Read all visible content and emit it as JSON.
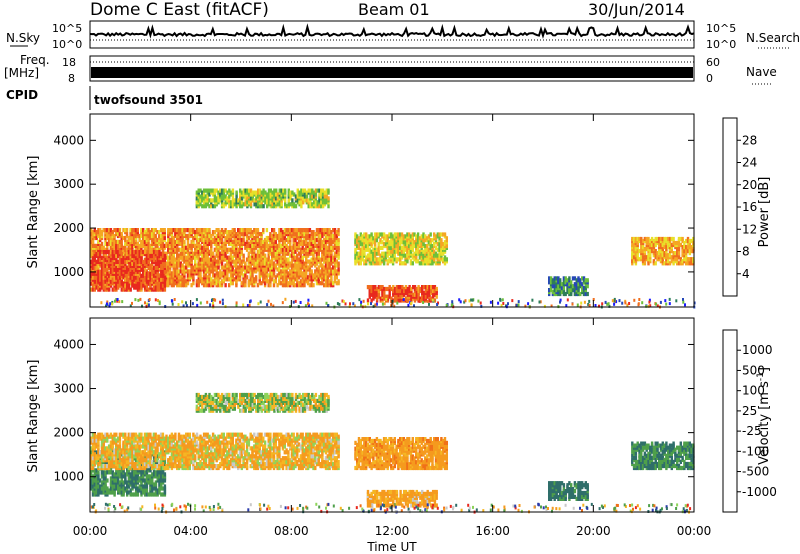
{
  "header": {
    "station": "Dome C East (fitACF)",
    "beam": "Beam 01",
    "date": "30/Jun/2014"
  },
  "strips": {
    "nsky_label": "N.Sky",
    "nsearch_label": "N.Search",
    "nsky_ticks": [
      "10^5",
      "10^0"
    ],
    "freq_label_1": "Freq.",
    "freq_label_2": "[MHz]",
    "freq_ticks": [
      "18",
      "8"
    ],
    "nave_label": "Nave",
    "nave_ticks": [
      "60",
      "0"
    ],
    "cpid_label": "CPID",
    "cpid_value": "twofsound 3501"
  },
  "colors": {
    "power": [
      "#1a1aff",
      "#2547b8",
      "#2e7d5a",
      "#6dbf3a",
      "#e8e02a",
      "#f5a623",
      "#f06e1e",
      "#e8281e"
    ],
    "velocity": [
      "#2a3aaa",
      "#2f6e6a",
      "#4fa04a",
      "#8ed45a",
      "#c8c8c8",
      "#f5b623",
      "#f59a1e",
      "#f07018",
      "#e8281e"
    ]
  },
  "chart_data": [
    {
      "type": "heatmap",
      "panel": "power",
      "xlabel": "",
      "ylabel": "Slant Range [km]",
      "x_ticks": [
        "00:00",
        "04:00",
        "08:00",
        "12:00",
        "16:00",
        "20:00",
        "00:00"
      ],
      "y_ticks": [
        1000,
        2000,
        3000,
        4000
      ],
      "ylim": [
        200,
        4600
      ],
      "colorbar_label": "Power [dB]",
      "colorbar_ticks": [
        "4",
        "8",
        "12",
        "16",
        "20",
        "24",
        "28"
      ],
      "regions": [
        {
          "t0": 0.0,
          "t1": 9.9,
          "r0": 700,
          "r1": 2000,
          "value": 24
        },
        {
          "t0": 0.0,
          "t1": 3.0,
          "r0": 600,
          "r1": 1500,
          "value": 28
        },
        {
          "t0": 4.2,
          "t1": 9.5,
          "r0": 2500,
          "r1": 2900,
          "value": 16
        },
        {
          "t0": 10.5,
          "t1": 14.2,
          "r0": 1200,
          "r1": 1900,
          "value": 18
        },
        {
          "t0": 11.0,
          "t1": 13.8,
          "r0": 350,
          "r1": 700,
          "value": 28
        },
        {
          "t0": 18.2,
          "t1": 19.8,
          "r0": 500,
          "r1": 900,
          "value": 10
        },
        {
          "t0": 21.5,
          "t1": 24.0,
          "r0": 1200,
          "r1": 1800,
          "value": 22
        }
      ]
    },
    {
      "type": "heatmap",
      "panel": "velocity",
      "xlabel": "Time UT",
      "ylabel": "Slant Range [km]",
      "x_ticks": [
        "00:00",
        "04:00",
        "08:00",
        "12:00",
        "16:00",
        "20:00",
        "00:00"
      ],
      "y_ticks": [
        1000,
        2000,
        3000,
        4000
      ],
      "ylim": [
        200,
        4600
      ],
      "colorbar_label": "Velocity [m s^-1]",
      "colorbar_ticks": [
        "1000",
        "500",
        "100",
        "25",
        "-25",
        "-100",
        "-500",
        "-1000"
      ],
      "regions": [
        {
          "t0": 0.0,
          "t1": 3.0,
          "r0": 600,
          "r1": 1600,
          "value": 300
        },
        {
          "t0": 0.0,
          "t1": 9.9,
          "r0": 1200,
          "r1": 2000,
          "value": -100
        },
        {
          "t0": 4.2,
          "t1": 9.5,
          "r0": 2500,
          "r1": 2900,
          "value": 25
        },
        {
          "t0": 10.5,
          "t1": 14.2,
          "r0": 1200,
          "r1": 1900,
          "value": -200
        },
        {
          "t0": 11.0,
          "t1": 13.8,
          "r0": 350,
          "r1": 700,
          "value": -150
        },
        {
          "t0": 18.2,
          "t1": 19.8,
          "r0": 500,
          "r1": 900,
          "value": 400
        },
        {
          "t0": 21.5,
          "t1": 24.0,
          "r0": 1200,
          "r1": 1800,
          "value": 300
        }
      ]
    }
  ]
}
